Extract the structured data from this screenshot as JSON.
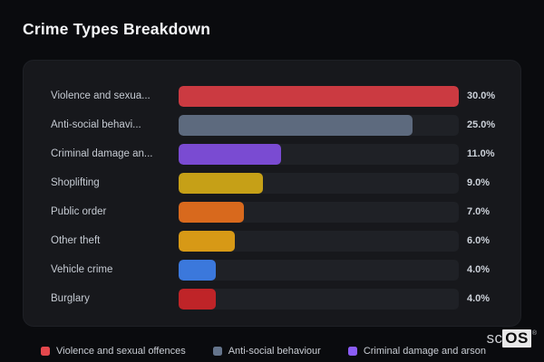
{
  "header": {
    "title": "Crime Types Breakdown"
  },
  "chart_data": {
    "type": "bar",
    "orientation": "horizontal",
    "title": "Crime Types Breakdown",
    "categories": [
      "Violence and sexual offences",
      "Anti-social behaviour",
      "Criminal damage and arson",
      "Shoplifting",
      "Public order",
      "Other theft",
      "Vehicle crime",
      "Burglary"
    ],
    "display_labels": [
      "Violence and sexua...",
      "Anti-social behavi...",
      "Criminal damage an...",
      "Shoplifting",
      "Public order",
      "Other theft",
      "Vehicle crime",
      "Burglary"
    ],
    "values": [
      30.0,
      25.0,
      11.0,
      9.0,
      7.0,
      6.0,
      4.0,
      4.0
    ],
    "value_labels": [
      "30.0%",
      "25.0%",
      "11.0%",
      "9.0%",
      "7.0%",
      "6.0%",
      "4.0%",
      "4.0%"
    ],
    "bar_colors": [
      "#cb3a41",
      "#5d6a7e",
      "#7a4bd2",
      "#c6a017",
      "#d8691d",
      "#d79916",
      "#3b78dc",
      "#bf2428"
    ],
    "track_color": "#1f2126",
    "xlim": [
      0,
      30
    ],
    "grid": false,
    "legend_position": "bottom",
    "legend": [
      {
        "label": "Violence and sexual offences",
        "color": "#e5484d"
      },
      {
        "label": "Anti-social behaviour",
        "color": "#64748b"
      },
      {
        "label": "Criminal damage and arson",
        "color": "#8b5cf6"
      }
    ]
  },
  "branding": {
    "prefix": "sc",
    "suffix": "OS",
    "mark": "®"
  }
}
